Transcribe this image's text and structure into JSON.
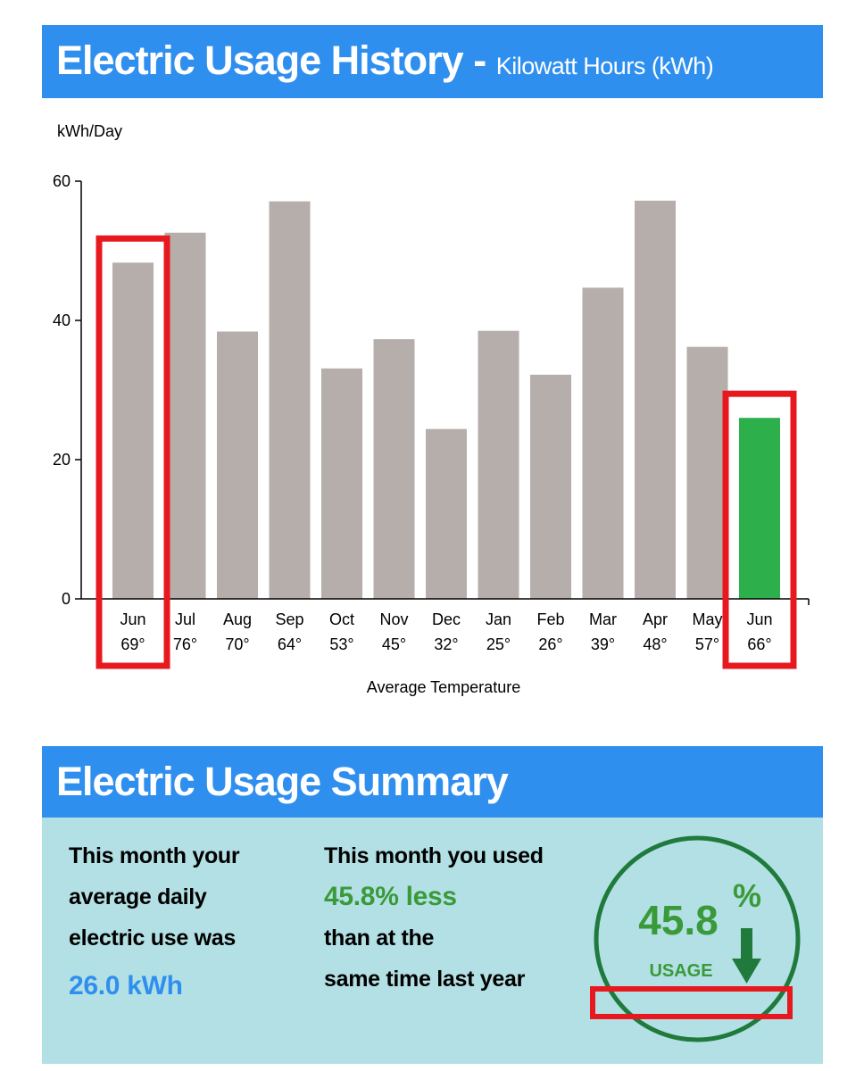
{
  "header": {
    "title": "Electric Usage History",
    "dash": "-",
    "subtitle": "Kilowatt Hours (kWh)"
  },
  "chart_data": {
    "type": "bar",
    "ylabel": "kWh/Day",
    "xlabel": "Average Temperature",
    "ylim": [
      0,
      60
    ],
    "yticks": [
      0,
      20,
      40,
      60
    ],
    "categories": [
      "Jun",
      "Jul",
      "Aug",
      "Sep",
      "Oct",
      "Nov",
      "Dec",
      "Jan",
      "Feb",
      "Mar",
      "Apr",
      "May",
      "Jun"
    ],
    "temperatures": [
      "69°",
      "76°",
      "70°",
      "64°",
      "53°",
      "45°",
      "32°",
      "25°",
      "26°",
      "39°",
      "48°",
      "57°",
      "66°"
    ],
    "values": [
      48.3,
      52.6,
      38.4,
      57.1,
      33.1,
      37.3,
      24.4,
      38.5,
      32.2,
      44.7,
      57.2,
      36.2,
      26.0
    ],
    "highlight_index": 12,
    "bar_color": "#b5aeab",
    "highlight_color": "#2db04c",
    "annotation_color": "#e8191e",
    "boxed_indices": [
      0,
      12
    ],
    "grid": false
  },
  "summary": {
    "title": "Electric Usage Summary",
    "col1_lines": [
      "This month your",
      "average daily",
      "electric use was"
    ],
    "daily_use": "26.0 kWh",
    "col2_line1": "This month you used",
    "col2_highlight": "45.8% less",
    "col2_lines": [
      "than at the",
      "same time last year"
    ],
    "gauge_value": "45.8",
    "gauge_percent": "%",
    "gauge_label": "USAGE",
    "gauge_direction": "down-arrow",
    "colors": {
      "panel": "#b3e0e4",
      "blue": "#2f8fef",
      "green": "#3a9a3a",
      "circle": "#1f7a3c"
    }
  }
}
